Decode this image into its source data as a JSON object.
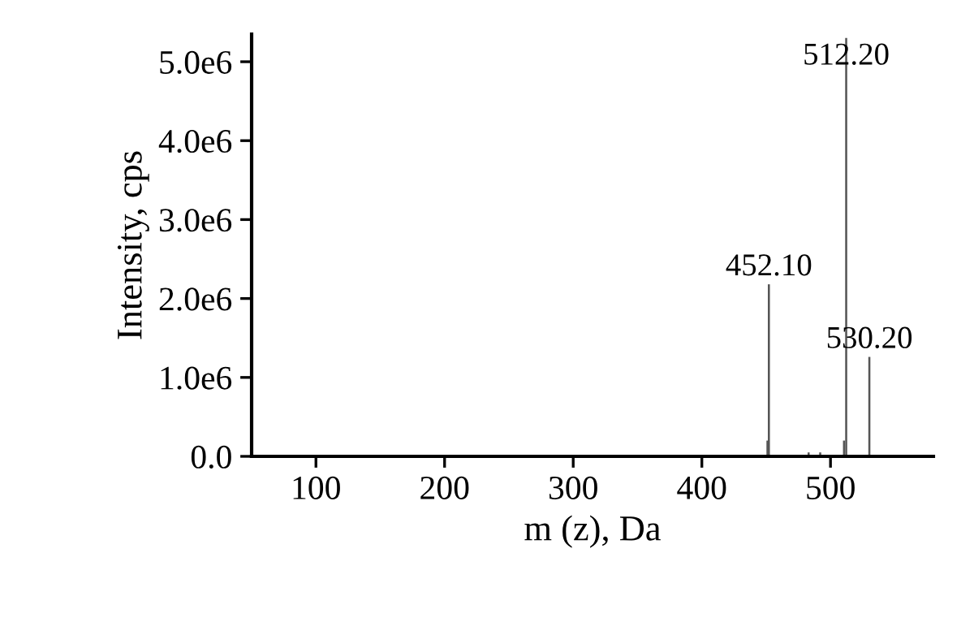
{
  "chart_data": {
    "type": "bar",
    "xlabel": "m (z), Da",
    "ylabel": "Intensity, cps",
    "x": [
      451,
      452.1,
      483,
      492,
      510.5,
      512.2,
      530.2
    ],
    "values": [
      200000,
      2180000,
      50000,
      50000,
      200000,
      5300000,
      1260000
    ],
    "color": "#555555",
    "xlim": [
      50,
      580
    ],
    "xticks": [
      100,
      200,
      300,
      400,
      500
    ],
    "ylim": [
      0,
      5350000
    ],
    "yticks": [
      {
        "value": 0,
        "label": "0.0"
      },
      {
        "value": 1000000,
        "label": "1.0e6"
      },
      {
        "value": 2000000,
        "label": "2.0e6"
      },
      {
        "value": 3000000,
        "label": "3.0e6"
      },
      {
        "value": 4000000,
        "label": "4.0e6"
      },
      {
        "value": 5000000,
        "label": "5.0e6"
      }
    ],
    "annotations": [
      {
        "text": "452.10",
        "x": 452.1,
        "y": 2180000
      },
      {
        "text": "512.20",
        "x": 512.2,
        "y": 5300000
      },
      {
        "text": "530.20",
        "x": 530.2,
        "y": 1260000
      }
    ],
    "grid": false
  }
}
